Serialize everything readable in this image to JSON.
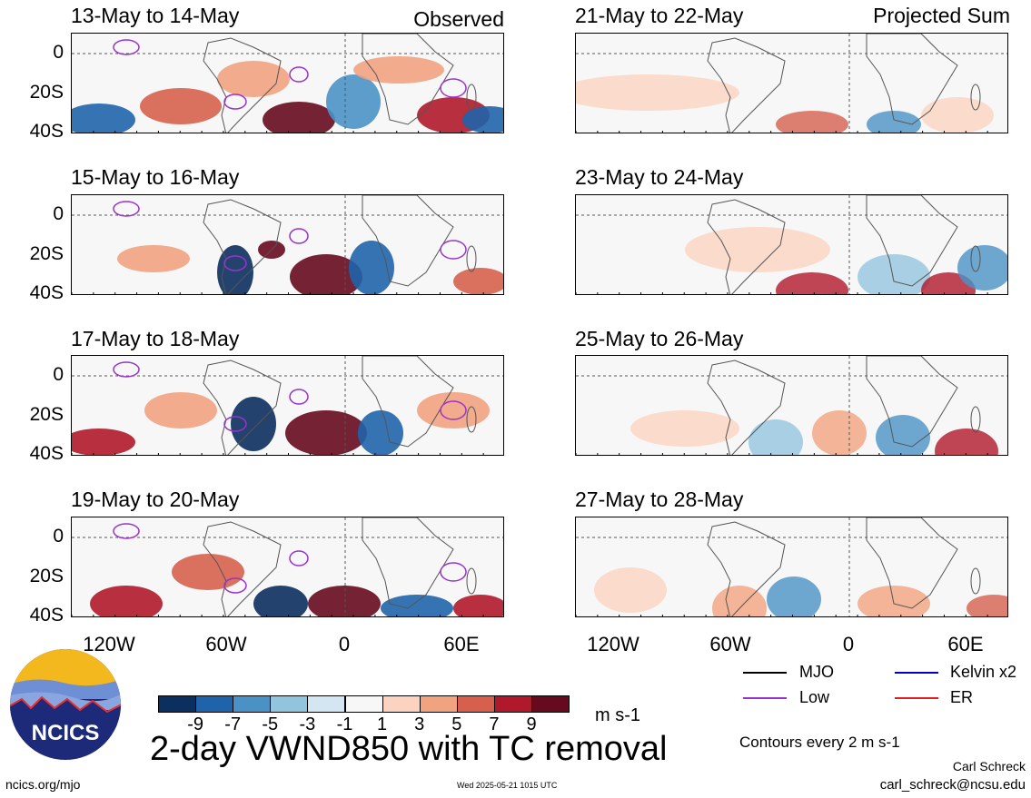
{
  "panels": {
    "observed": [
      {
        "title": "13-May to 14-May",
        "tag": "Observed"
      },
      {
        "title": "15-May to 16-May",
        "tag": ""
      },
      {
        "title": "17-May to 18-May",
        "tag": ""
      },
      {
        "title": "19-May to 20-May",
        "tag": ""
      }
    ],
    "projected": [
      {
        "title": "21-May to 22-May",
        "tag": "Projected Sum"
      },
      {
        "title": "23-May to 24-May",
        "tag": ""
      },
      {
        "title": "25-May to 26-May",
        "tag": ""
      },
      {
        "title": "27-May to 28-May",
        "tag": ""
      }
    ]
  },
  "chart_data": {
    "type": "heatmap",
    "variable": "2-day VWND850 with TC removal",
    "units": "m s-1",
    "y_ticks": [
      "0",
      "20S",
      "40S"
    ],
    "x_ticks": [
      "120W",
      "60W",
      "0",
      "60E"
    ],
    "colorbar": {
      "labels": [
        "-9",
        "-7",
        "-5",
        "-3",
        "-1",
        "1",
        "3",
        "5",
        "7",
        "9"
      ],
      "colors": [
        "#0b2f5e",
        "#1f64aa",
        "#4a92c5",
        "#93c4de",
        "#d4e6f1",
        "#f7f7f7",
        "#fbd3c0",
        "#f1a27f",
        "#d6604d",
        "#b0182b",
        "#670a1f"
      ]
    },
    "legend": [
      {
        "name": "MJO",
        "color": "#000000"
      },
      {
        "name": "Kelvin x2",
        "color": "#0000cc"
      },
      {
        "name": "Low",
        "color": "#9a32cd"
      },
      {
        "name": "ER",
        "color": "#e02020"
      }
    ],
    "contour_note": "Contours every 2 m s-1"
  },
  "footer": {
    "logo_text": "NCICS",
    "url": "ncics.org/mjo",
    "timestamp": "Wed 2025-05-21 1015 UTC",
    "author": "Carl Schreck",
    "email": "carl_schreck@ncsu.edu"
  }
}
